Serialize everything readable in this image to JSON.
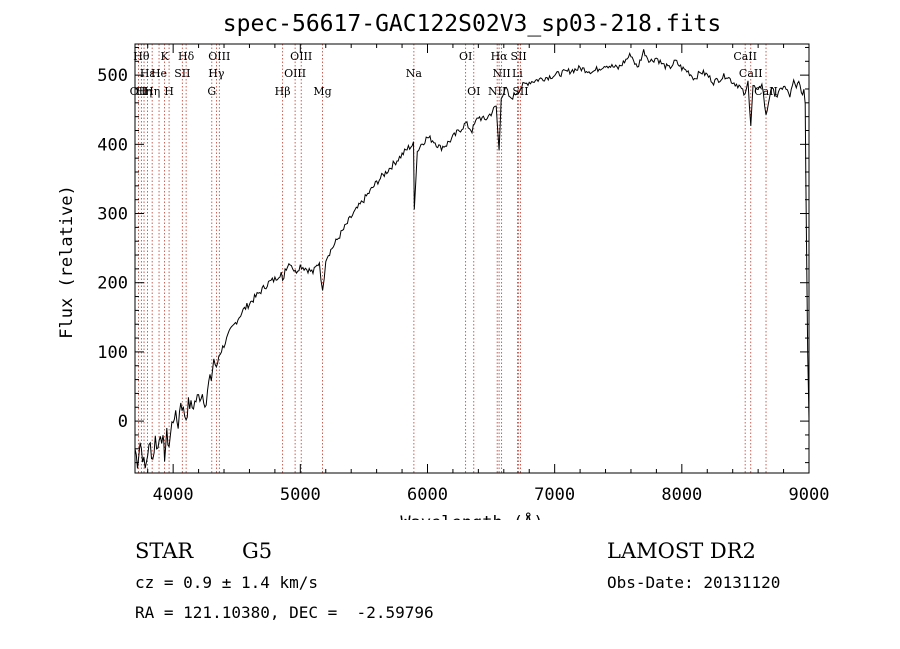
{
  "chart_data": {
    "type": "line",
    "title": "spec-56617-GAC122S02V3_sp03-218.fits",
    "xlabel": "Wavelength (Å)",
    "ylabel": "Flux (relative)",
    "xlim": [
      3700,
      9000
    ],
    "ylim": [
      -75,
      545
    ],
    "xticks": [
      4000,
      5000,
      6000,
      7000,
      8000,
      9000
    ],
    "yticks": [
      0,
      100,
      200,
      300,
      400,
      500
    ],
    "series": [
      {
        "name": "flux",
        "x": [
          3700,
          3720,
          3740,
          3760,
          3780,
          3800,
          3820,
          3840,
          3860,
          3880,
          3900,
          3920,
          3933,
          3950,
          3968,
          3990,
          4010,
          4040,
          4060,
          4080,
          4102,
          4120,
          4150,
          4180,
          4200,
          4230,
          4260,
          4280,
          4300,
          4320,
          4340,
          4360,
          4400,
          4450,
          4500,
          4550,
          4600,
          4650,
          4700,
          4750,
          4800,
          4850,
          4861,
          4880,
          4920,
          4960,
          5000,
          5050,
          5100,
          5150,
          5175,
          5200,
          5250,
          5300,
          5400,
          5500,
          5600,
          5700,
          5800,
          5850,
          5890,
          5896,
          5920,
          5950,
          6000,
          6050,
          6100,
          6150,
          6200,
          6250,
          6300,
          6350,
          6400,
          6450,
          6500,
          6540,
          6563,
          6580,
          6620,
          6650,
          6700,
          6750,
          6800,
          6900,
          7000,
          7100,
          7200,
          7300,
          7400,
          7500,
          7600,
          7650,
          7700,
          7750,
          7800,
          7850,
          7900,
          7950,
          8000,
          8050,
          8100,
          8150,
          8200,
          8250,
          8300,
          8350,
          8400,
          8450,
          8498,
          8520,
          8542,
          8560,
          8600,
          8630,
          8662,
          8700,
          8750,
          8800,
          8850,
          8880,
          8900,
          8920,
          8940,
          8960,
          8970,
          8980,
          8990,
          9000
        ],
        "y": [
          -40,
          -60,
          -30,
          -50,
          -70,
          -45,
          -35,
          -55,
          -25,
          -40,
          -15,
          -30,
          -50,
          -20,
          -35,
          -5,
          10,
          -5,
          30,
          15,
          5,
          25,
          20,
          30,
          35,
          40,
          25,
          55,
          60,
          90,
          75,
          95,
          110,
          130,
          145,
          160,
          170,
          180,
          190,
          200,
          205,
          215,
          200,
          220,
          230,
          215,
          225,
          220,
          215,
          230,
          185,
          235,
          250,
          265,
          295,
          320,
          345,
          365,
          385,
          395,
          400,
          310,
          390,
          400,
          410,
          405,
          395,
          400,
          410,
          420,
          430,
          420,
          440,
          435,
          445,
          455,
          390,
          470,
          480,
          465,
          475,
          485,
          490,
          495,
          500,
          505,
          510,
          505,
          515,
          510,
          530,
          510,
          535,
          520,
          525,
          515,
          510,
          520,
          510,
          505,
          495,
          505,
          500,
          490,
          495,
          500,
          490,
          485,
          470,
          490,
          430,
          485,
          475,
          490,
          440,
          480,
          470,
          485,
          470,
          490,
          480,
          495,
          470,
          480,
          460,
          260,
          100,
          0
        ]
      }
    ],
    "lines": [
      {
        "x": 3727,
        "label": "OII",
        "row": 3
      },
      {
        "x": 3750,
        "label": "Hθ",
        "row": 1
      },
      {
        "x": 3771,
        "label": "Hη",
        "row": 3
      },
      {
        "x": 3798,
        "label": "Hε",
        "row": 2
      },
      {
        "x": 3835,
        "label": "Hη",
        "row": 3
      },
      {
        "x": 3889,
        "label": "He",
        "row": 2
      },
      {
        "x": 3933,
        "label": "K",
        "row": 1
      },
      {
        "x": 3968,
        "label": "H",
        "row": 3
      },
      {
        "x": 4072,
        "label": "SII",
        "row": 2
      },
      {
        "x": 4102,
        "label": "Hδ",
        "row": 1
      },
      {
        "x": 4304,
        "label": "G",
        "row": 3
      },
      {
        "x": 4340,
        "label": "Hγ",
        "row": 2
      },
      {
        "x": 4363,
        "label": "OIII",
        "row": 1
      },
      {
        "x": 4861,
        "label": "Hβ",
        "row": 3
      },
      {
        "x": 4959,
        "label": "OIII",
        "row": 2
      },
      {
        "x": 5007,
        "label": "OIII",
        "row": 1
      },
      {
        "x": 5175,
        "label": "Mg",
        "row": 3
      },
      {
        "x": 5893,
        "label": "Na",
        "row": 2
      },
      {
        "x": 6300,
        "label": "OI",
        "row": 1
      },
      {
        "x": 6364,
        "label": "OI",
        "row": 3
      },
      {
        "x": 6548,
        "label": "NII",
        "row": 3
      },
      {
        "x": 6563,
        "label": "Hα",
        "row": 1
      },
      {
        "x": 6583,
        "label": "NII",
        "row": 2
      },
      {
        "x": 6707,
        "label": "Li",
        "row": 2
      },
      {
        "x": 6717,
        "label": "SII",
        "row": 1
      },
      {
        "x": 6731,
        "label": "SII",
        "row": 3
      },
      {
        "x": 8498,
        "label": "CaII",
        "row": 1
      },
      {
        "x": 8542,
        "label": "CaII",
        "row": 2
      },
      {
        "x": 8662,
        "label": "CaII",
        "row": 3
      }
    ]
  },
  "info": {
    "obj_class": "STAR",
    "subclass": "G5",
    "cz": "cz = 0.9 ± 1.4 km/s",
    "radec": "RA = 121.10380, DEC =  -2.59796",
    "survey": "LAMOST DR2",
    "obs_date": "Obs-Date: 20131120"
  }
}
